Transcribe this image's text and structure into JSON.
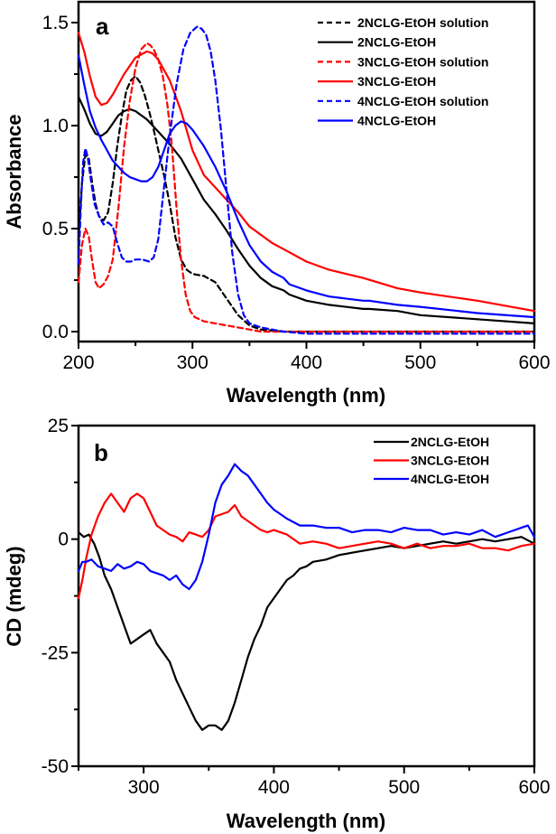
{
  "chart_data": [
    {
      "type": "line",
      "panel_label": "a",
      "title": "",
      "xlabel": "Wavelength (nm)",
      "ylabel": "Absorbance",
      "xlim": [
        200,
        600
      ],
      "ylim": [
        -0.03,
        1.62
      ],
      "xticks": [
        200,
        300,
        400,
        500,
        600
      ],
      "xtick_labels": [
        "200",
        "300",
        "400",
        "500",
        "600"
      ],
      "yticks": [
        0.0,
        0.5,
        1.0,
        1.5
      ],
      "ytick_labels": [
        "0.0",
        "0.5",
        "1.0",
        "1.5"
      ],
      "grid": false,
      "legend_position": "top-right",
      "series": [
        {
          "name": "2NCLG-EtOH solution",
          "color": "#000000",
          "dash": true,
          "x": [
            200,
            203,
            206,
            209,
            212,
            215,
            218,
            222,
            226,
            230,
            234,
            238,
            242,
            246,
            250,
            254,
            258,
            262,
            266,
            270,
            275,
            280,
            285,
            290,
            295,
            300,
            310,
            320,
            330,
            340,
            350,
            360,
            380,
            400,
            450,
            500,
            600
          ],
          "y": [
            0.45,
            0.72,
            0.86,
            0.84,
            0.72,
            0.62,
            0.56,
            0.54,
            0.58,
            0.72,
            0.9,
            1.05,
            1.17,
            1.22,
            1.24,
            1.21,
            1.15,
            1.07,
            0.98,
            0.88,
            0.76,
            0.62,
            0.46,
            0.35,
            0.3,
            0.28,
            0.27,
            0.24,
            0.16,
            0.08,
            0.03,
            0.01,
            0.0,
            0.0,
            0.0,
            0.0,
            0.0
          ]
        },
        {
          "name": "2NCLG-EtOH",
          "color": "#000000",
          "dash": false,
          "x": [
            200,
            205,
            210,
            215,
            220,
            225,
            230,
            235,
            240,
            245,
            250,
            260,
            270,
            280,
            290,
            300,
            310,
            320,
            330,
            340,
            350,
            360,
            370,
            380,
            385,
            400,
            420,
            450,
            455,
            480,
            500,
            550,
            600
          ],
          "y": [
            1.14,
            1.08,
            1.01,
            0.96,
            0.95,
            0.97,
            1.01,
            1.05,
            1.07,
            1.08,
            1.07,
            1.03,
            0.97,
            0.91,
            0.84,
            0.74,
            0.64,
            0.57,
            0.49,
            0.4,
            0.32,
            0.26,
            0.22,
            0.2,
            0.18,
            0.15,
            0.13,
            0.11,
            0.11,
            0.1,
            0.08,
            0.06,
            0.04
          ]
        },
        {
          "name": "3NCLG-EtOH solution",
          "color": "#ff0000",
          "dash": true,
          "x": [
            200,
            203,
            206,
            209,
            212,
            215,
            218,
            222,
            226,
            230,
            235,
            240,
            245,
            250,
            255,
            260,
            263,
            266,
            270,
            274,
            278,
            282,
            286,
            290,
            294,
            298,
            302,
            310,
            320,
            330,
            340,
            350,
            360,
            380,
            400,
            500,
            600
          ],
          "y": [
            0.24,
            0.42,
            0.5,
            0.46,
            0.34,
            0.24,
            0.21,
            0.23,
            0.27,
            0.35,
            0.6,
            0.9,
            1.12,
            1.28,
            1.37,
            1.4,
            1.39,
            1.37,
            1.32,
            1.24,
            1.1,
            0.9,
            0.6,
            0.35,
            0.18,
            0.1,
            0.07,
            0.05,
            0.04,
            0.03,
            0.02,
            0.01,
            0.0,
            0.0,
            0.0,
            0.0,
            0.0
          ]
        },
        {
          "name": "3NCLG-EtOH",
          "color": "#ff0000",
          "dash": false,
          "x": [
            200,
            205,
            210,
            215,
            220,
            225,
            230,
            240,
            250,
            260,
            265,
            270,
            280,
            290,
            300,
            310,
            320,
            330,
            340,
            350,
            360,
            370,
            380,
            400,
            420,
            450,
            480,
            500,
            550,
            600
          ],
          "y": [
            1.45,
            1.36,
            1.24,
            1.14,
            1.1,
            1.11,
            1.15,
            1.25,
            1.33,
            1.36,
            1.35,
            1.32,
            1.22,
            1.07,
            0.88,
            0.76,
            0.7,
            0.64,
            0.58,
            0.51,
            0.47,
            0.43,
            0.4,
            0.34,
            0.3,
            0.26,
            0.21,
            0.19,
            0.15,
            0.1
          ]
        },
        {
          "name": "4NCLG-EtOH solution",
          "color": "#0000ff",
          "dash": true,
          "x": [
            200,
            202,
            204,
            206,
            208,
            211,
            214,
            218,
            222,
            226,
            230,
            234,
            238,
            242,
            246,
            250,
            256,
            262,
            266,
            270,
            275,
            280,
            286,
            292,
            298,
            304,
            308,
            312,
            316,
            320,
            325,
            330,
            335,
            340,
            345,
            350,
            360,
            370,
            380,
            400,
            500,
            600
          ],
          "y": [
            0.33,
            0.6,
            0.82,
            0.89,
            0.85,
            0.73,
            0.62,
            0.56,
            0.52,
            0.53,
            0.51,
            0.43,
            0.36,
            0.34,
            0.34,
            0.35,
            0.35,
            0.34,
            0.36,
            0.45,
            0.7,
            0.95,
            1.2,
            1.37,
            1.45,
            1.48,
            1.47,
            1.44,
            1.36,
            1.22,
            0.98,
            0.68,
            0.38,
            0.18,
            0.08,
            0.04,
            0.02,
            0.01,
            0.0,
            -0.01,
            -0.01,
            -0.01
          ]
        },
        {
          "name": "4NCLG-EtOH",
          "color": "#0000ff",
          "dash": false,
          "x": [
            200,
            205,
            210,
            215,
            220,
            225,
            230,
            235,
            240,
            245,
            250,
            255,
            260,
            265,
            270,
            275,
            280,
            285,
            290,
            295,
            300,
            310,
            320,
            330,
            340,
            350,
            360,
            370,
            380,
            385,
            400,
            420,
            450,
            455,
            480,
            500,
            550,
            600
          ],
          "y": [
            1.34,
            1.2,
            1.07,
            0.99,
            0.93,
            0.88,
            0.83,
            0.8,
            0.77,
            0.75,
            0.74,
            0.73,
            0.73,
            0.75,
            0.8,
            0.88,
            0.96,
            1.0,
            1.02,
            1.01,
            0.98,
            0.9,
            0.8,
            0.68,
            0.54,
            0.42,
            0.34,
            0.29,
            0.26,
            0.23,
            0.2,
            0.17,
            0.15,
            0.15,
            0.13,
            0.12,
            0.09,
            0.07
          ]
        }
      ]
    },
    {
      "type": "line",
      "panel_label": "b",
      "title": "",
      "xlabel": "Wavelength (nm)",
      "ylabel": "CD (mdeg)",
      "xlim": [
        250,
        600
      ],
      "ylim": [
        -50,
        25
      ],
      "xticks": [
        300,
        400,
        500,
        600
      ],
      "xtick_labels": [
        "300",
        "400",
        "500",
        "600"
      ],
      "yticks": [
        25,
        0,
        -25,
        -50
      ],
      "ytick_labels": [
        "25",
        "0",
        "-25",
        "-50"
      ],
      "grid": false,
      "legend_position": "top-right",
      "series": [
        {
          "name": "2NCLG-EtOH",
          "color": "#000000",
          "dash": false,
          "x": [
            250,
            254,
            258,
            262,
            266,
            270,
            275,
            280,
            285,
            290,
            295,
            300,
            305,
            310,
            315,
            320,
            325,
            330,
            335,
            340,
            345,
            350,
            355,
            360,
            365,
            370,
            375,
            380,
            385,
            390,
            395,
            400,
            405,
            410,
            415,
            420,
            425,
            430,
            440,
            450,
            460,
            470,
            480,
            490,
            500,
            510,
            520,
            530,
            540,
            550,
            560,
            570,
            580,
            590,
            600
          ],
          "y": [
            1.5,
            0.5,
            1.0,
            -1.0,
            -4,
            -8,
            -11,
            -15,
            -19,
            -23,
            -22,
            -21,
            -20,
            -23,
            -25,
            -27,
            -31,
            -34,
            -37,
            -40,
            -42,
            -41,
            -41,
            -42,
            -40,
            -36,
            -31,
            -26,
            -22,
            -19,
            -15,
            -13,
            -11,
            -9,
            -8,
            -6.5,
            -6,
            -5,
            -4.5,
            -3.5,
            -3,
            -2.5,
            -2,
            -1.5,
            -2,
            -1.5,
            -1,
            -0.5,
            -1,
            -0.5,
            0,
            -0.5,
            0,
            0.5,
            -1
          ]
        },
        {
          "name": "3NCLG-EtOH",
          "color": "#ff0000",
          "dash": false,
          "x": [
            250,
            253,
            256,
            260,
            265,
            270,
            275,
            280,
            285,
            290,
            295,
            300,
            305,
            310,
            315,
            320,
            325,
            330,
            335,
            340,
            345,
            350,
            355,
            360,
            365,
            370,
            375,
            380,
            385,
            390,
            395,
            400,
            410,
            420,
            430,
            440,
            450,
            460,
            470,
            480,
            490,
            500,
            510,
            520,
            530,
            540,
            550,
            560,
            570,
            580,
            590,
            600
          ],
          "y": [
            -13,
            -9,
            -4,
            1,
            5,
            8,
            10,
            8,
            6,
            9,
            10,
            9,
            6,
            3,
            2,
            1,
            0.5,
            -0.5,
            1.5,
            1,
            0.5,
            2,
            5,
            5.5,
            6,
            7.5,
            5,
            4,
            3,
            2,
            1.5,
            2,
            1,
            -1,
            -0.5,
            -1,
            -2,
            -1.5,
            -1,
            -0.5,
            -1,
            -2,
            -1,
            -2,
            -1.5,
            -1.5,
            -1,
            -2,
            -2,
            -2.5,
            -1.5,
            -1
          ]
        },
        {
          "name": "4NCLG-EtOH",
          "color": "#0000ff",
          "dash": false,
          "x": [
            250,
            253,
            256,
            260,
            265,
            270,
            275,
            280,
            285,
            290,
            295,
            300,
            305,
            310,
            315,
            320,
            325,
            330,
            335,
            340,
            345,
            350,
            355,
            360,
            365,
            370,
            375,
            380,
            385,
            390,
            395,
            400,
            410,
            420,
            430,
            440,
            450,
            460,
            470,
            480,
            490,
            500,
            510,
            520,
            530,
            540,
            550,
            560,
            570,
            580,
            590,
            595,
            600
          ],
          "y": [
            -7,
            -5,
            -5,
            -4.5,
            -6,
            -6.5,
            -7,
            -5.5,
            -6.5,
            -6,
            -5,
            -5.5,
            -7,
            -7.5,
            -8,
            -9,
            -8,
            -10,
            -11,
            -9,
            -5,
            1,
            8,
            12,
            14,
            16.5,
            15,
            14,
            12,
            10,
            8,
            6.5,
            4.5,
            3,
            3,
            2.5,
            2.5,
            1.5,
            2,
            2,
            1.5,
            2.5,
            2,
            2,
            1,
            1.5,
            1,
            2,
            0.5,
            1.5,
            2.5,
            3,
            0.5
          ]
        }
      ]
    }
  ]
}
